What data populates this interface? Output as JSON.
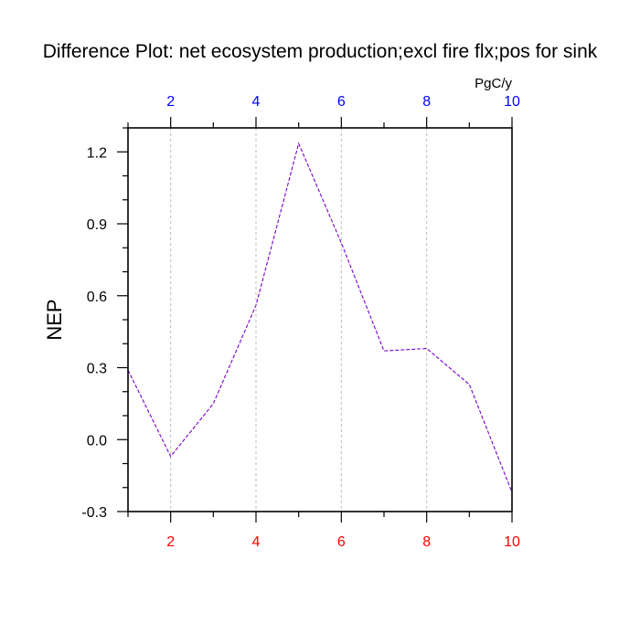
{
  "chart_data": {
    "type": "line",
    "title": "Difference Plot: net ecosystem production;excl fire flx;pos for sink",
    "units": "PgC/y",
    "ylabel": "NEP",
    "xlabel": "",
    "xlim": [
      1,
      10
    ],
    "ylim": [
      -0.3,
      1.3
    ],
    "x_ticks": [
      2,
      4,
      6,
      8,
      10
    ],
    "y_ticks": [
      -0.3,
      0.0,
      0.3,
      0.6,
      0.9,
      1.2
    ],
    "y_tick_labels": [
      "-0.3",
      "0.0",
      "0.3",
      "0.6",
      "0.9",
      "1.2"
    ],
    "x_tick_labels": [
      "2",
      "4",
      "6",
      "8",
      "10"
    ],
    "grid": "vertical-dashed",
    "legend": "none",
    "series": [
      {
        "x": [
          1,
          2,
          3,
          4,
          5,
          6,
          7,
          8,
          9,
          10
        ],
        "values": [
          0.29,
          -0.07,
          0.15,
          0.56,
          1.235,
          0.82,
          0.37,
          0.38,
          0.23,
          -0.22
        ],
        "color": "#7a00c8",
        "style": "dashed"
      }
    ],
    "colors": {
      "bottom_tick_labels": "#ff0000",
      "top_tick_labels": "#0000ff",
      "axis": "#000000",
      "grid": "#bbbbbb"
    }
  }
}
